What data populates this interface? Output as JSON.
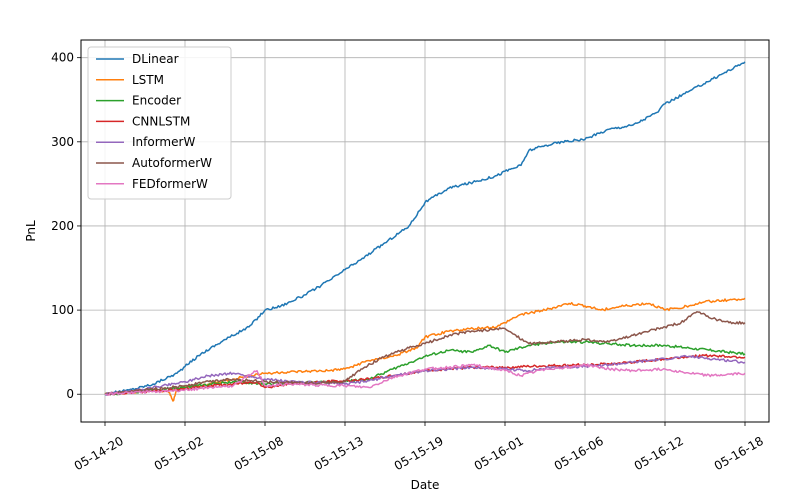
{
  "chart_data": {
    "type": "line",
    "title": "",
    "xlabel": "Date",
    "ylabel": "PnL",
    "x_ticks": [
      "05-14-20",
      "05-15-02",
      "05-15-08",
      "05-15-13",
      "05-15-19",
      "05-16-01",
      "05-16-06",
      "05-16-12",
      "05-16-18"
    ],
    "xlim": [
      -0.3,
      8.3
    ],
    "ylim": [
      -33,
      421
    ],
    "y_ticks": [
      0,
      100,
      200,
      300,
      400
    ],
    "grid": true,
    "legend_position": "upper-left",
    "series": [
      {
        "name": "DLinear",
        "color": "#1f77b4",
        "x": [
          0,
          0.3,
          0.6,
          0.9,
          1.0,
          1.2,
          1.5,
          1.8,
          2.0,
          2.2,
          2.5,
          2.8,
          3.0,
          3.2,
          3.5,
          3.8,
          4.0,
          4.3,
          4.6,
          4.9,
          5.0,
          5.2,
          5.3,
          5.6,
          5.9,
          6.0,
          6.3,
          6.6,
          6.9,
          7.0,
          7.3,
          7.6,
          7.9,
          8.0
        ],
        "y": [
          0,
          5,
          12,
          25,
          33,
          48,
          65,
          80,
          100,
          105,
          118,
          135,
          148,
          160,
          180,
          200,
          228,
          245,
          252,
          260,
          265,
          272,
          290,
          298,
          302,
          303,
          315,
          320,
          335,
          345,
          360,
          375,
          390,
          395
        ]
      },
      {
        "name": "LSTM",
        "color": "#ff7f0e",
        "x": [
          0,
          0.3,
          0.6,
          0.8,
          0.85,
          0.9,
          1.0,
          1.3,
          1.6,
          1.8,
          2.0,
          2.2,
          2.5,
          2.8,
          3.0,
          3.3,
          3.6,
          3.9,
          4.0,
          4.3,
          4.6,
          4.9,
          5.0,
          5.2,
          5.5,
          5.8,
          6.0,
          6.2,
          6.5,
          6.8,
          7.0,
          7.3,
          7.5,
          7.8,
          8.0
        ],
        "y": [
          0,
          2,
          5,
          2,
          -8,
          5,
          8,
          12,
          18,
          22,
          25,
          26,
          27,
          28,
          30,
          40,
          45,
          55,
          68,
          75,
          78,
          80,
          85,
          95,
          100,
          108,
          105,
          100,
          105,
          108,
          100,
          105,
          110,
          112,
          114
        ]
      },
      {
        "name": "Encoder",
        "color": "#2ca02c",
        "x": [
          0,
          0.3,
          0.6,
          1.0,
          1.3,
          1.6,
          2.0,
          2.3,
          2.6,
          3.0,
          3.3,
          3.6,
          4.0,
          4.3,
          4.6,
          4.8,
          5.0,
          5.3,
          5.6,
          6.0,
          6.3,
          6.6,
          7.0,
          7.3,
          7.6,
          8.0
        ],
        "y": [
          0,
          2,
          5,
          8,
          12,
          15,
          12,
          13,
          14,
          15,
          18,
          30,
          45,
          52,
          50,
          58,
          50,
          58,
          62,
          62,
          60,
          58,
          58,
          55,
          52,
          48
        ]
      },
      {
        "name": "CNNLSTM",
        "color": "#d62728",
        "x": [
          0,
          0.3,
          0.6,
          1.0,
          1.3,
          1.6,
          1.9,
          2.0,
          2.3,
          2.6,
          3.0,
          3.3,
          3.6,
          4.0,
          4.3,
          4.6,
          5.0,
          5.3,
          5.6,
          6.0,
          6.3,
          6.6,
          7.0,
          7.3,
          7.6,
          8.0
        ],
        "y": [
          0,
          2,
          4,
          6,
          10,
          12,
          15,
          8,
          12,
          14,
          16,
          18,
          22,
          28,
          30,
          32,
          32,
          33,
          34,
          35,
          36,
          38,
          42,
          45,
          46,
          44
        ]
      },
      {
        "name": "InformerW",
        "color": "#9467bd",
        "x": [
          0,
          0.3,
          0.6,
          1.0,
          1.3,
          1.6,
          2.0,
          2.3,
          2.6,
          3.0,
          3.3,
          3.6,
          4.0,
          4.3,
          4.6,
          5.0,
          5.3,
          5.6,
          6.0,
          6.3,
          6.6,
          7.0,
          7.3,
          7.6,
          8.0
        ],
        "y": [
          0,
          3,
          8,
          15,
          22,
          25,
          18,
          15,
          14,
          12,
          16,
          22,
          28,
          30,
          32,
          30,
          28,
          32,
          33,
          35,
          38,
          42,
          45,
          42,
          38
        ]
      },
      {
        "name": "AutoformerW",
        "color": "#8c564b",
        "x": [
          0,
          0.3,
          0.6,
          1.0,
          1.3,
          1.6,
          2.0,
          2.3,
          2.6,
          3.0,
          3.2,
          3.5,
          3.8,
          4.0,
          4.3,
          4.6,
          5.0,
          5.3,
          5.6,
          6.0,
          6.3,
          6.6,
          7.0,
          7.2,
          7.4,
          7.6,
          7.8,
          8.0
        ],
        "y": [
          0,
          3,
          6,
          10,
          15,
          18,
          15,
          14,
          13,
          15,
          30,
          45,
          55,
          60,
          70,
          75,
          78,
          60,
          62,
          65,
          62,
          70,
          80,
          85,
          98,
          90,
          85,
          85
        ]
      },
      {
        "name": "FEDformerW",
        "color": "#e377c2",
        "x": [
          0,
          0.3,
          0.6,
          1.0,
          1.3,
          1.6,
          1.9,
          2.0,
          2.3,
          2.6,
          3.0,
          3.3,
          3.6,
          4.0,
          4.3,
          4.6,
          5.0,
          5.2,
          5.5,
          5.8,
          6.0,
          6.3,
          6.6,
          7.0,
          7.3,
          7.6,
          8.0
        ],
        "y": [
          0,
          2,
          3,
          5,
          8,
          10,
          28,
          10,
          12,
          11,
          10,
          8,
          20,
          30,
          32,
          35,
          28,
          22,
          30,
          32,
          35,
          30,
          28,
          30,
          25,
          22,
          25
        ]
      }
    ]
  }
}
